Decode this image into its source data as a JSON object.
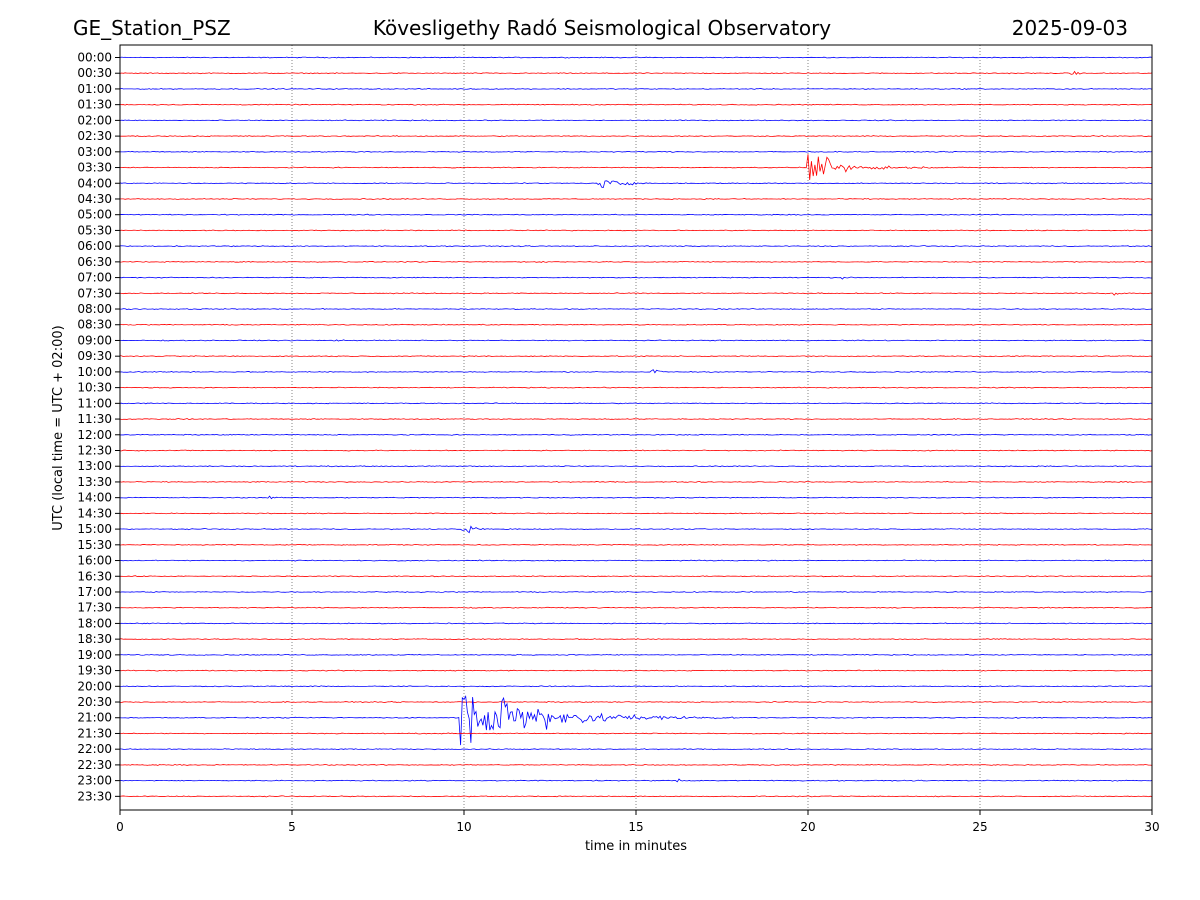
{
  "header": {
    "station": "GE_Station_PSZ",
    "observatory": "Kövesligethy Radó Seismological Observatory",
    "date": "2025-09-03"
  },
  "chart_data": {
    "type": "line",
    "subtype": "helicorder",
    "xlabel": "time in minutes",
    "ylabel": "UTC (local time = UTC + 02:00)",
    "xlim": [
      0,
      30
    ],
    "x_ticks": [
      0,
      5,
      10,
      15,
      20,
      25,
      30
    ],
    "vertical_gridlines_at": [
      5,
      10,
      15,
      20,
      25
    ],
    "row_minutes": 30,
    "row_labels": [
      "00:00",
      "00:30",
      "01:00",
      "01:30",
      "02:00",
      "02:30",
      "03:00",
      "03:30",
      "04:00",
      "04:30",
      "05:00",
      "05:30",
      "06:00",
      "06:30",
      "07:00",
      "07:30",
      "08:00",
      "08:30",
      "09:00",
      "09:30",
      "10:00",
      "10:30",
      "11:00",
      "11:30",
      "12:00",
      "12:30",
      "13:00",
      "13:30",
      "14:00",
      "14:30",
      "15:00",
      "15:30",
      "16:00",
      "16:30",
      "17:00",
      "17:30",
      "18:00",
      "18:30",
      "19:00",
      "19:30",
      "20:00",
      "20:30",
      "21:00",
      "21:30",
      "22:00",
      "22:30",
      "23:00",
      "23:30"
    ],
    "trace_colors": [
      "#0000ff",
      "#ff0000"
    ],
    "events": [
      {
        "row": "00:30",
        "start_min": 27.6,
        "duration_min": 0.8,
        "amplitude": 0.35
      },
      {
        "row": "03:30",
        "start_min": 20.0,
        "duration_min": 4.0,
        "amplitude": 1.2
      },
      {
        "row": "04:00",
        "start_min": 13.9,
        "duration_min": 2.2,
        "amplitude": 0.6
      },
      {
        "row": "07:00",
        "start_min": 21.0,
        "duration_min": 0.6,
        "amplitude": 0.2
      },
      {
        "row": "07:30",
        "start_min": 28.9,
        "duration_min": 0.6,
        "amplitude": 0.25
      },
      {
        "row": "09:00",
        "start_min": 6.2,
        "duration_min": 0.6,
        "amplitude": 0.2
      },
      {
        "row": "10:00",
        "start_min": 15.4,
        "duration_min": 1.0,
        "amplitude": 0.3
      },
      {
        "row": "14:00",
        "start_min": 4.3,
        "duration_min": 0.5,
        "amplitude": 0.25
      },
      {
        "row": "15:00",
        "start_min": 9.9,
        "duration_min": 1.4,
        "amplitude": 0.55
      },
      {
        "row": "21:00",
        "start_min": 9.9,
        "duration_min": 8.0,
        "amplitude": 3.0
      },
      {
        "row": "23:00",
        "start_min": 16.2,
        "duration_min": 0.8,
        "amplitude": 0.2
      }
    ]
  }
}
